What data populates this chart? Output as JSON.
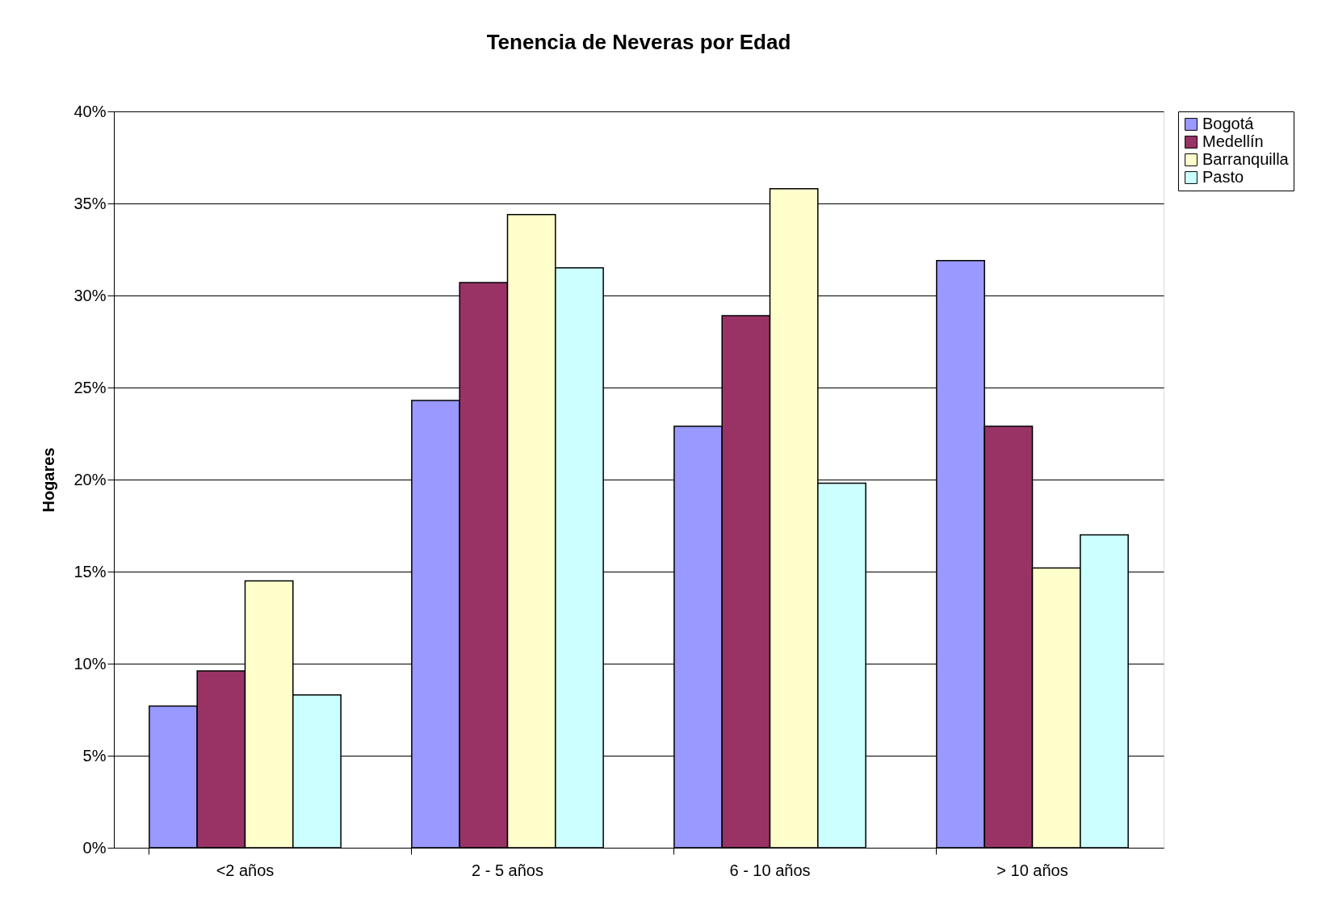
{
  "chart_data": {
    "type": "bar",
    "title": "Tenencia de Neveras  por Edad",
    "ylabel": "Hogares",
    "categories": [
      "<2 años",
      "2 - 5 años",
      "6 - 10 años",
      "> 10 años"
    ],
    "series": [
      {
        "name": "Bogotá",
        "color": "#9999ff",
        "values": [
          7.7,
          24.3,
          22.9,
          31.9
        ]
      },
      {
        "name": "Medellín",
        "color": "#993366",
        "values": [
          9.6,
          30.7,
          28.9,
          22.9
        ]
      },
      {
        "name": "Barranquilla",
        "color": "#ffffcc",
        "values": [
          14.5,
          34.4,
          35.8,
          15.2
        ]
      },
      {
        "name": "Pasto",
        "color": "#ccffff",
        "values": [
          8.3,
          31.5,
          19.8,
          17.0
        ]
      }
    ],
    "ylim": [
      0,
      40
    ],
    "yticks": [
      {
        "value": 0,
        "label": "0%"
      },
      {
        "value": 5,
        "label": "5%"
      },
      {
        "value": 10,
        "label": "10%"
      },
      {
        "value": 15,
        "label": "15%"
      },
      {
        "value": 20,
        "label": "20%"
      },
      {
        "value": 25,
        "label": "25%"
      },
      {
        "value": 30,
        "label": "30%"
      },
      {
        "value": 35,
        "label": "35%"
      },
      {
        "value": 40,
        "label": "40%"
      }
    ],
    "grid": "y",
    "legend": "right"
  }
}
